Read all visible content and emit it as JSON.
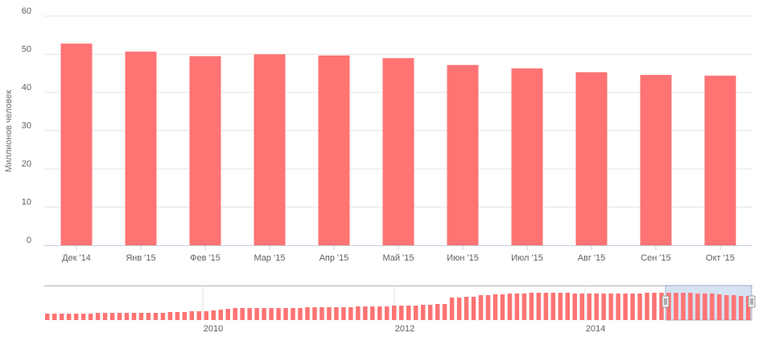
{
  "chart_data": {
    "type": "bar",
    "title": "",
    "xlabel": "",
    "ylabel": "Миллионов человек",
    "ylim": [
      0,
      60
    ],
    "y_ticks": [
      "0",
      "10",
      "20",
      "30",
      "40",
      "50",
      "60"
    ],
    "grid": true,
    "categories": [
      "Дек '14",
      "Янв '15",
      "Фев '15",
      "Мар '15",
      "Апр '15",
      "Май '15",
      "Июн '15",
      "Июл '15",
      "Авг '15",
      "Сен '15",
      "Окт '15"
    ],
    "values": [
      52.8,
      50.7,
      49.5,
      50.0,
      49.7,
      49.0,
      47.2,
      46.3,
      45.3,
      44.6,
      44.4
    ],
    "color": "#ff7373"
  },
  "navigator": {
    "x_ticks": [
      "2010",
      "2012",
      "2014"
    ],
    "series_color": "#ff7373",
    "selection_color": "#c9d8ee",
    "selection_border": "#9fb3cf"
  }
}
